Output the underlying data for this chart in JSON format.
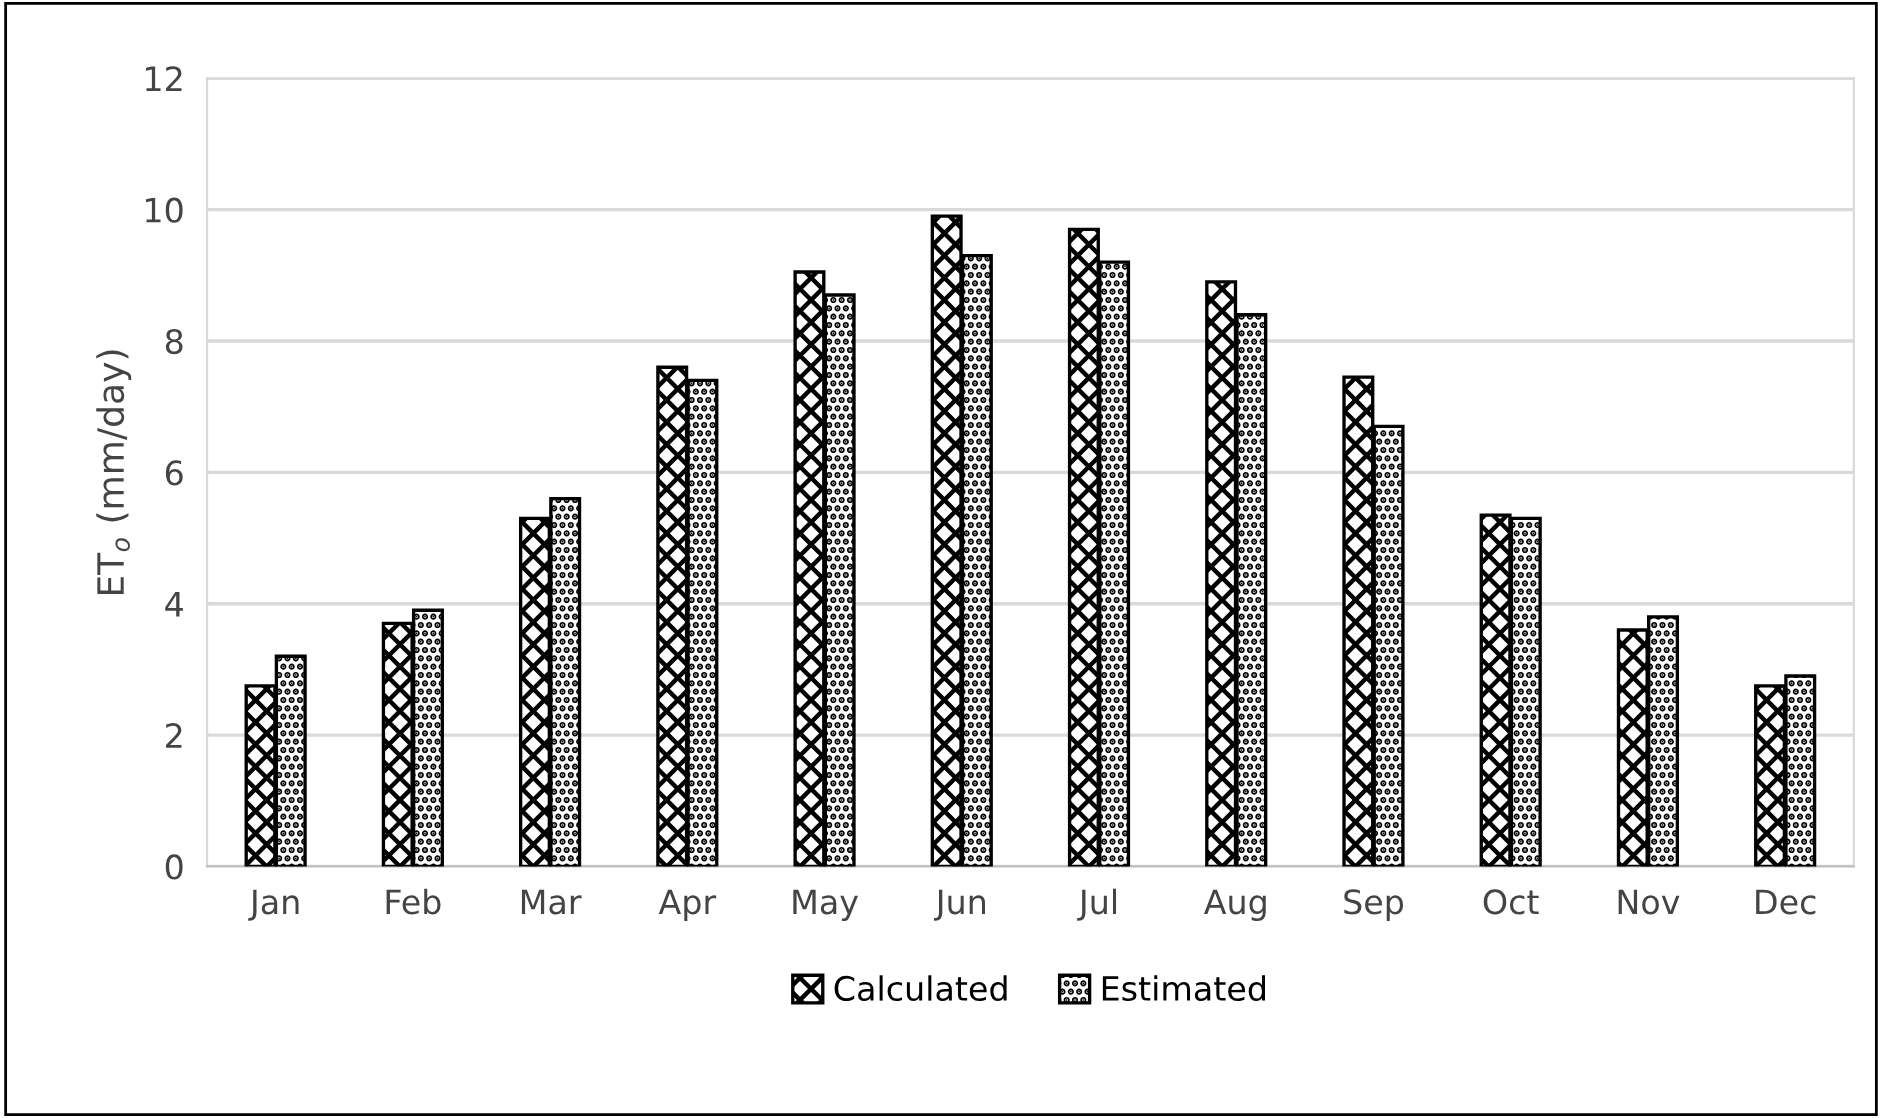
{
  "chart_data": {
    "type": "bar",
    "ylabel": "ET$_{o}$ (mm/day)",
    "categories": [
      "Jan",
      "Feb",
      "Mar",
      "Apr",
      "May",
      "Jun",
      "Jul",
      "Aug",
      "Sep",
      "Oct",
      "Nov",
      "Dec"
    ],
    "series": [
      {
        "name": "Calculated",
        "color": "#000000",
        "values": [
          2.75,
          3.7,
          5.3,
          7.6,
          9.05,
          9.9,
          9.7,
          8.9,
          7.45,
          5.35,
          3.6,
          2.75
        ]
      },
      {
        "name": "Estimated",
        "color": "#000000",
        "values": [
          3.2,
          3.9,
          5.6,
          7.4,
          8.7,
          9.3,
          9.2,
          8.4,
          6.7,
          5.3,
          3.8,
          2.9
        ]
      }
    ],
    "ylim": [
      0,
      12
    ],
    "yticks": [
      0,
      2,
      4,
      6,
      8,
      10,
      12
    ],
    "grid": "y",
    "legend": "bottom"
  }
}
